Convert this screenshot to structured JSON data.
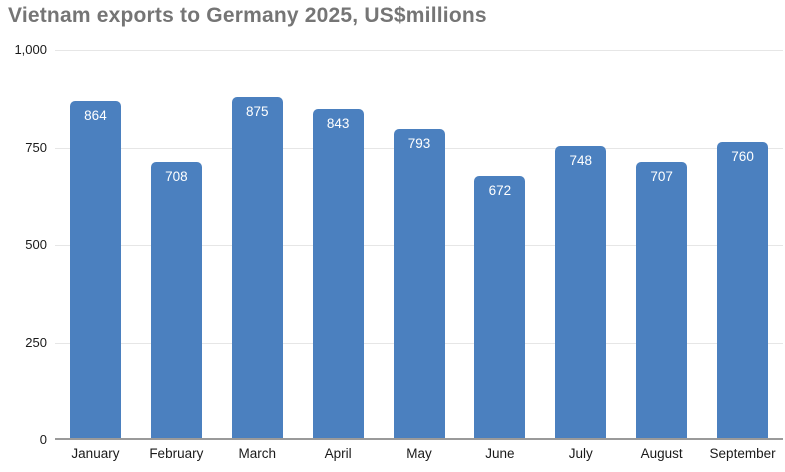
{
  "chart_data": {
    "type": "bar",
    "title": "Vietnam exports to Germany 2025, US$millions",
    "categories": [
      "January",
      "February",
      "March",
      "April",
      "May",
      "June",
      "July",
      "August",
      "September"
    ],
    "values": [
      864,
      708,
      875,
      843,
      793,
      672,
      748,
      707,
      760
    ],
    "xlabel": "",
    "ylabel": "",
    "ylim": [
      0,
      1000
    ],
    "yticks": [
      {
        "value": 0,
        "label": "0"
      },
      {
        "value": 250,
        "label": "250"
      },
      {
        "value": 500,
        "label": "500"
      },
      {
        "value": 750,
        "label": "750"
      },
      {
        "value": 1000,
        "label": "1,000"
      }
    ],
    "grid": "horizontal",
    "legend_position": "none",
    "value_labels": "inside-top",
    "colors": {
      "bar": "#4b80bf",
      "title_text": "#757575",
      "gridline": "#e6e6e6",
      "zero_axis": "#9a9a9a",
      "axis_text": "#1a1a1a",
      "value_label_text": "#ffffff",
      "background": "#ffffff"
    }
  }
}
